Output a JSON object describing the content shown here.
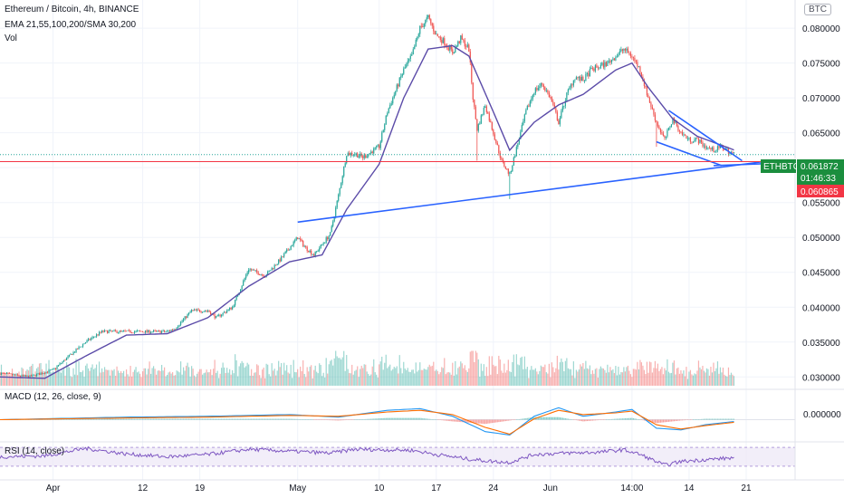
{
  "header": {
    "symbol": "Ethereum / Bitcoin, 4h, BINANCE",
    "ema": "EMA 21,55,100,200/SMA 30,200",
    "vol": "Vol"
  },
  "currency_badge": "BTC",
  "macd_label": "MACD (12, 26, close, 9)",
  "rsi_label": "RSI (14, close)",
  "price_panel": {
    "ticker": "ETHBTC",
    "last_price": "0.061872",
    "countdown": "01:46:33",
    "hline_price": "0.060865"
  },
  "macd_zero_label": "0.000000",
  "colors": {
    "up": "#26a69a",
    "down": "#ef5350",
    "ema": "#5b4ba8",
    "trendline": "#2962ff",
    "macd": "#2196f3",
    "signal": "#ff6d00",
    "rsi": "#7e57c2",
    "badge_green": "#1b8e3e",
    "badge_red": "#f23645"
  },
  "chart_data": [
    {
      "type": "candlestick",
      "title": "Ethereum / Bitcoin, 4h, BINANCE",
      "ylim": [
        0.029,
        0.083
      ],
      "y_ticks": [
        "0.080000",
        "0.075000",
        "0.070000",
        "0.065000",
        "0.060000",
        "0.055000",
        "0.050000",
        "0.045000",
        "0.040000",
        "0.035000",
        "0.030000"
      ],
      "y_tick_values": [
        0.08,
        0.075,
        0.07,
        0.065,
        0.06,
        0.055,
        0.05,
        0.045,
        0.04,
        0.035,
        0.03
      ],
      "x_ticks": [
        "Apr",
        "12",
        "19",
        "May",
        "10",
        "17",
        "24",
        "Jun",
        "14:00",
        "14",
        "21"
      ],
      "x_tick_days": [
        1,
        12,
        19,
        31,
        41,
        48,
        55,
        62,
        72,
        79,
        86
      ],
      "x_range_days": [
        -5.5,
        92
      ],
      "last_day": 84.6,
      "price_path": [
        [
          -5.5,
          0.0305
        ],
        [
          -2,
          0.03
        ],
        [
          1,
          0.031
        ],
        [
          3,
          0.033
        ],
        [
          5,
          0.035
        ],
        [
          7,
          0.0365
        ],
        [
          9,
          0.0365
        ],
        [
          12,
          0.0365
        ],
        [
          15,
          0.0365
        ],
        [
          16,
          0.037
        ],
        [
          18,
          0.0395
        ],
        [
          20,
          0.0395
        ],
        [
          21,
          0.0385
        ],
        [
          23,
          0.04
        ],
        [
          25,
          0.0455
        ],
        [
          27,
          0.0445
        ],
        [
          29,
          0.047
        ],
        [
          31,
          0.05
        ],
        [
          32,
          0.0485
        ],
        [
          33,
          0.0475
        ],
        [
          35,
          0.0505
        ],
        [
          36,
          0.056
        ],
        [
          37,
          0.062
        ],
        [
          38,
          0.062
        ],
        [
          39,
          0.0615
        ],
        [
          41,
          0.063
        ],
        [
          42,
          0.068
        ],
        [
          43,
          0.071
        ],
        [
          44,
          0.074
        ],
        [
          45,
          0.076
        ],
        [
          46,
          0.08
        ],
        [
          47,
          0.0815
        ],
        [
          48,
          0.079
        ],
        [
          49,
          0.078
        ],
        [
          50,
          0.0765
        ],
        [
          51,
          0.0785
        ],
        [
          52,
          0.077
        ],
        [
          52.5,
          0.07
        ],
        [
          53,
          0.0655
        ],
        [
          54,
          0.069
        ],
        [
          55,
          0.065
        ],
        [
          56,
          0.061
        ],
        [
          57,
          0.059
        ],
        [
          58,
          0.0635
        ],
        [
          59,
          0.068
        ],
        [
          60,
          0.071
        ],
        [
          61,
          0.072
        ],
        [
          62,
          0.07
        ],
        [
          63,
          0.0665
        ],
        [
          64,
          0.0705
        ],
        [
          65,
          0.073
        ],
        [
          66,
          0.0725
        ],
        [
          67,
          0.074
        ],
        [
          68,
          0.0745
        ],
        [
          69,
          0.075
        ],
        [
          70,
          0.076
        ],
        [
          71,
          0.077
        ],
        [
          72,
          0.076
        ],
        [
          73,
          0.074
        ],
        [
          74,
          0.07
        ],
        [
          75,
          0.0665
        ],
        [
          76,
          0.064
        ],
        [
          77,
          0.067
        ],
        [
          78,
          0.065
        ],
        [
          79,
          0.064
        ],
        [
          80,
          0.064
        ],
        [
          81,
          0.063
        ],
        [
          82,
          0.0625
        ],
        [
          83,
          0.063
        ],
        [
          84,
          0.0622
        ],
        [
          84.6,
          0.06187
        ]
      ],
      "ema_path": [
        [
          -5.5,
          0.03
        ],
        [
          0,
          0.0298
        ],
        [
          5,
          0.033
        ],
        [
          10,
          0.036
        ],
        [
          15,
          0.0362
        ],
        [
          20,
          0.0385
        ],
        [
          25,
          0.043
        ],
        [
          30,
          0.0465
        ],
        [
          34,
          0.0475
        ],
        [
          37,
          0.054
        ],
        [
          41,
          0.0605
        ],
        [
          44,
          0.07
        ],
        [
          47,
          0.077
        ],
        [
          50,
          0.0775
        ],
        [
          52,
          0.076
        ],
        [
          55,
          0.068
        ],
        [
          57,
          0.0625
        ],
        [
          60,
          0.0665
        ],
        [
          63,
          0.069
        ],
        [
          66,
          0.0705
        ],
        [
          70,
          0.074
        ],
        [
          72,
          0.075
        ],
        [
          74,
          0.0715
        ],
        [
          77,
          0.067
        ],
        [
          80,
          0.0645
        ],
        [
          84.6,
          0.0625
        ]
      ],
      "lows": [
        [
          53,
          0.061
        ],
        [
          57,
          0.0555
        ],
        [
          75,
          0.063
        ],
        [
          84.6,
          0.0608
        ]
      ],
      "trendlines": [
        {
          "from": [
            31,
            0.0522
          ],
          "to": [
            89,
            0.061
          ]
        },
        {
          "from": [
            76.5,
            0.0682
          ],
          "to": [
            85.5,
            0.061
          ]
        },
        {
          "from": [
            75,
            0.0637
          ],
          "to": [
            83,
            0.0603
          ]
        },
        {
          "from": [
            82,
            0.0603
          ],
          "to": [
            89,
            0.0606
          ]
        }
      ],
      "last_price": 0.061872,
      "hline_price": 0.060865,
      "volume_relative": [
        1.0,
        2.6
      ]
    },
    {
      "type": "line",
      "title": "MACD (12, 26, close, 9)",
      "series": [
        {
          "name": "MACD",
          "values": [
            [
              -5.5,
              0
            ],
            [
              10,
              0.0003
            ],
            [
              20,
              0.0004
            ],
            [
              30,
              0.0006
            ],
            [
              36,
              0.0003
            ],
            [
              42,
              0.0011
            ],
            [
              46,
              0.0013
            ],
            [
              50,
              0.0004
            ],
            [
              54,
              -0.0014
            ],
            [
              57,
              -0.0018
            ],
            [
              60,
              0.0004
            ],
            [
              63,
              0.0014
            ],
            [
              66,
              0.0004
            ],
            [
              70,
              0.0009
            ],
            [
              72,
              0.0012
            ],
            [
              75,
              -0.001
            ],
            [
              78,
              -0.0012
            ],
            [
              81,
              -0.0006
            ],
            [
              84.6,
              -0.0002
            ]
          ]
        },
        {
          "name": "Signal",
          "values": [
            [
              -5.5,
              0
            ],
            [
              10,
              0.0002
            ],
            [
              20,
              0.0003
            ],
            [
              30,
              0.0005
            ],
            [
              36,
              0.0004
            ],
            [
              42,
              0.0009
            ],
            [
              46,
              0.0011
            ],
            [
              50,
              0.0006
            ],
            [
              54,
              -0.0009
            ],
            [
              57,
              -0.0017
            ],
            [
              60,
              0.0001
            ],
            [
              63,
              0.0011
            ],
            [
              66,
              0.0006
            ],
            [
              70,
              0.0008
            ],
            [
              72,
              0.001
            ],
            [
              75,
              -0.0006
            ],
            [
              78,
              -0.0011
            ],
            [
              81,
              -0.0007
            ],
            [
              84.6,
              -0.0003
            ]
          ]
        }
      ],
      "ylim": [
        -0.0025,
        0.0025
      ],
      "y_ticks": [
        "0.000000"
      ]
    },
    {
      "type": "line",
      "title": "RSI (14, close)",
      "series": [
        {
          "name": "RSI",
          "values": [
            [
              -5.5,
              50
            ],
            [
              0,
              52
            ],
            [
              5,
              68
            ],
            [
              10,
              56
            ],
            [
              15,
              50
            ],
            [
              20,
              55
            ],
            [
              25,
              66
            ],
            [
              30,
              62
            ],
            [
              35,
              58
            ],
            [
              38,
              66
            ],
            [
              45,
              64
            ],
            [
              48,
              55
            ],
            [
              52,
              45
            ],
            [
              55,
              40
            ],
            [
              57,
              38
            ],
            [
              60,
              55
            ],
            [
              64,
              58
            ],
            [
              68,
              60
            ],
            [
              71,
              65
            ],
            [
              73,
              55
            ],
            [
              76,
              32
            ],
            [
              78,
              40
            ],
            [
              81,
              44
            ],
            [
              84.6,
              48
            ]
          ]
        }
      ],
      "ylim": [
        20,
        80
      ],
      "bands": [
        30,
        70
      ]
    }
  ]
}
